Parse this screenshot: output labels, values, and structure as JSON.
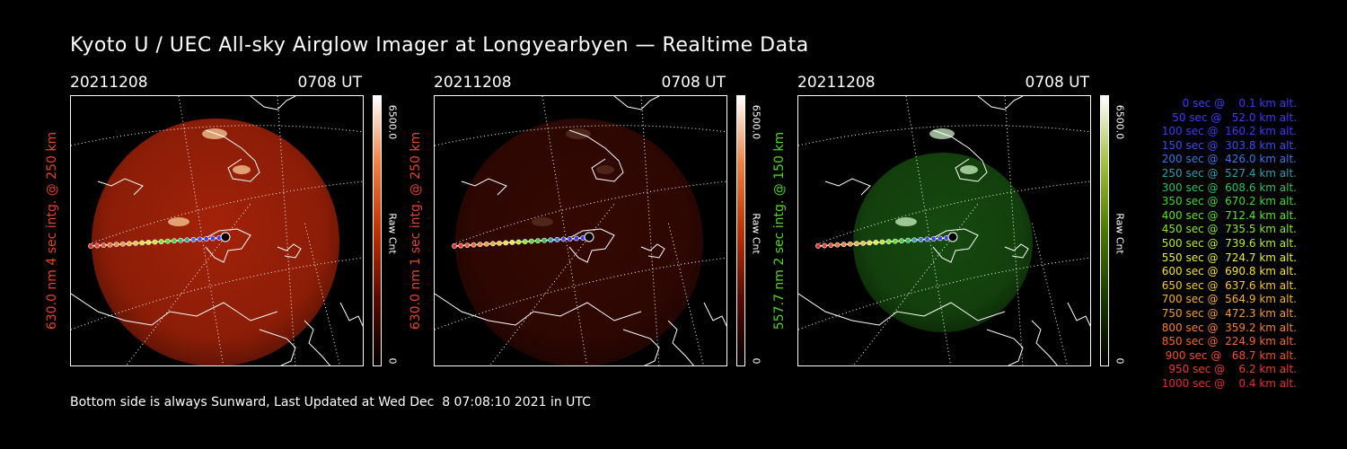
{
  "title": "Kyoto U / UEC All-sky Airglow Imager at Longyearbyen — Realtime Data",
  "panels": [
    {
      "date": "20211208",
      "time": "0708 UT",
      "side_label": "630.0 nm 4 sec intg. @ 250 km",
      "label_color": "#e8412a",
      "colorbar_max": "6500.0",
      "colorbar_label": "Raw Cnt",
      "colorbar_min": "0",
      "image_color": "#c0280a",
      "image_brightness": 0.85
    },
    {
      "date": "20211208",
      "time": "0708 UT",
      "side_label": "630.0 nm 1 sec intg. @ 250 km",
      "label_color": "#e8412a",
      "colorbar_max": "6500.0",
      "colorbar_label": "Raw Cnt",
      "colorbar_min": "0",
      "image_color": "#6a1005",
      "image_brightness": 0.5
    },
    {
      "date": "20211208",
      "time": "0708 UT",
      "side_label": "557.7 nm 2 sec intg. @ 150 km",
      "label_color": "#52d422",
      "colorbar_max": "6500.0",
      "colorbar_label": "Raw Cnt",
      "colorbar_min": "0",
      "image_color": "#1f6a14",
      "image_brightness": 0.7
    }
  ],
  "footer": "Bottom side is always Sunward, Last Updated at Wed Dec  8 07:08:10 2021 in UTC",
  "legend": [
    {
      "text": "   0 sec @    0.1 km alt.",
      "color": "#3b3bff"
    },
    {
      "text": "  50 sec @   52.0 km alt.",
      "color": "#3b3bff"
    },
    {
      "text": " 100 sec @  160.2 km alt.",
      "color": "#3b3bff"
    },
    {
      "text": " 150 sec @  303.8 km alt.",
      "color": "#3b4cf0"
    },
    {
      "text": " 200 sec @  426.0 km alt.",
      "color": "#3c74e8"
    },
    {
      "text": " 250 sec @  527.4 km alt.",
      "color": "#2aa0b0"
    },
    {
      "text": " 300 sec @  608.6 km alt.",
      "color": "#2fc060"
    },
    {
      "text": " 350 sec @  670.2 km alt.",
      "color": "#3fd830"
    },
    {
      "text": " 400 sec @  712.4 km alt.",
      "color": "#5ee02a"
    },
    {
      "text": " 450 sec @  735.5 km alt.",
      "color": "#88e82a"
    },
    {
      "text": " 500 sec @  739.6 km alt.",
      "color": "#b8ee2a"
    },
    {
      "text": " 550 sec @  724.7 km alt.",
      "color": "#e6ee30"
    },
    {
      "text": " 600 sec @  690.8 km alt.",
      "color": "#f5e030"
    },
    {
      "text": " 650 sec @  637.6 km alt.",
      "color": "#f5c830"
    },
    {
      "text": " 700 sec @  564.9 km alt.",
      "color": "#f5b030"
    },
    {
      "text": " 750 sec @  472.3 km alt.",
      "color": "#f59a30"
    },
    {
      "text": " 800 sec @  359.2 km alt.",
      "color": "#f58030"
    },
    {
      "text": " 850 sec @  224.9 km alt.",
      "color": "#f06830"
    },
    {
      "text": " 900 sec @   68.7 km alt.",
      "color": "#ee5030"
    },
    {
      "text": " 950 sec @    6.2 km alt.",
      "color": "#ec3c30"
    },
    {
      "text": "1000 sec @    0.4 km alt.",
      "color": "#ea2a2a"
    }
  ]
}
